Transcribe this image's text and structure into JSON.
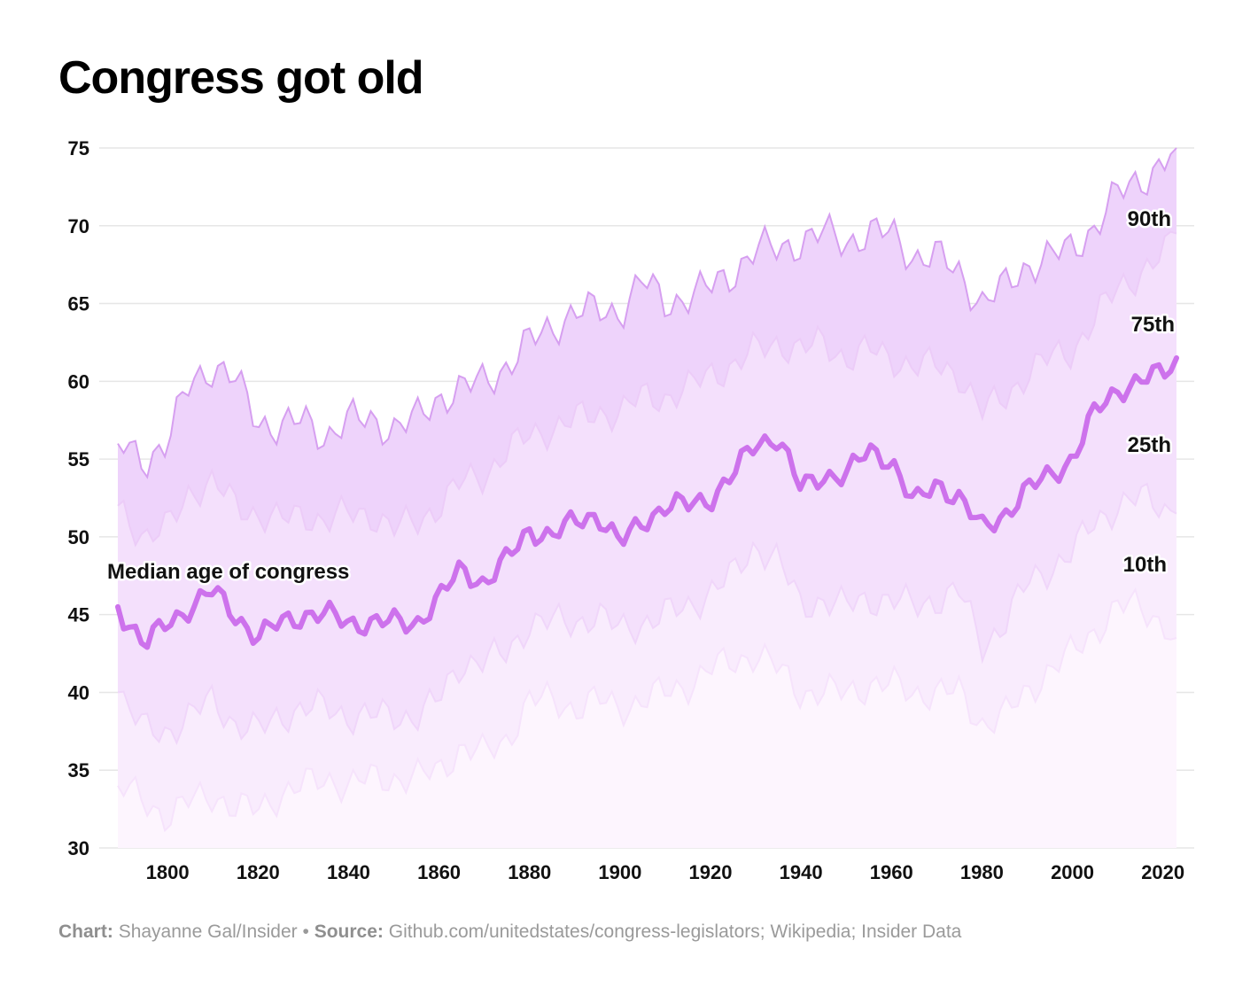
{
  "title": "Congress got old",
  "footer": {
    "chart_prefix": "Chart:",
    "chart_credit": "Shayanne Gal/Insider",
    "separator": "•",
    "source_prefix": "Source:",
    "source_text": "Github.com/unitedstates/congress-legislators; Wikipedia; Insider Data"
  },
  "colors": {
    "band_90": "#eed3fb",
    "band_75": "#f4e0fc",
    "band_25": "#f9ecfd",
    "band_10": "#fdf5fe",
    "line_90": "#d69ff0",
    "line_75": "#ecccf8",
    "line_25": "#f0d6fa",
    "line_10": "#f6e3fc",
    "median": "#cd72ec",
    "grid": "#e6e6e6"
  },
  "chart_data": {
    "type": "area",
    "title": "Congress got old",
    "xlabel": "",
    "ylabel": "",
    "xlim": [
      1789,
      2023
    ],
    "ylim": [
      30,
      75
    ],
    "x_ticks": [
      1800,
      1820,
      1840,
      1860,
      1880,
      1900,
      1920,
      1940,
      1960,
      1980,
      2000,
      2020
    ],
    "y_ticks": [
      30,
      35,
      40,
      45,
      50,
      55,
      60,
      65,
      70,
      75
    ],
    "grid": true,
    "annotations": [
      "Median age of congress",
      "90th",
      "75th",
      "25th",
      "10th"
    ],
    "x": [
      1789,
      1795,
      1800,
      1805,
      1810,
      1815,
      1820,
      1825,
      1830,
      1835,
      1840,
      1845,
      1850,
      1855,
      1860,
      1865,
      1870,
      1875,
      1880,
      1885,
      1890,
      1895,
      1900,
      1905,
      1910,
      1915,
      1920,
      1925,
      1930,
      1935,
      1940,
      1945,
      1950,
      1955,
      1960,
      1965,
      1970,
      1975,
      1980,
      1985,
      1990,
      1995,
      2000,
      2005,
      2010,
      2015,
      2020,
      2023
    ],
    "series": [
      {
        "name": "90th",
        "values": [
          56.0,
          55.0,
          56.0,
          60.0,
          61.0,
          60.0,
          57.5,
          57.0,
          57.5,
          56.5,
          57.5,
          57.5,
          57.0,
          57.5,
          59.0,
          59.5,
          60.0,
          61.0,
          62.5,
          63.5,
          64.5,
          64.5,
          64.5,
          66.5,
          65.0,
          65.5,
          66.0,
          67.0,
          68.5,
          68.5,
          69.0,
          69.5,
          69.0,
          69.5,
          69.5,
          68.0,
          68.0,
          67.0,
          65.0,
          66.0,
          67.5,
          68.0,
          68.5,
          70.0,
          72.0,
          73.0,
          74.0,
          75.0
        ]
      },
      {
        "name": "75th",
        "values": [
          52.0,
          50.0,
          50.5,
          53.0,
          53.5,
          52.0,
          51.5,
          51.0,
          51.5,
          51.0,
          51.5,
          51.5,
          50.5,
          51.0,
          52.0,
          53.5,
          54.0,
          55.5,
          56.5,
          57.0,
          57.5,
          58.0,
          58.0,
          59.0,
          59.0,
          59.5,
          60.5,
          61.0,
          62.0,
          62.5,
          62.0,
          62.5,
          61.5,
          62.0,
          61.5,
          61.0,
          61.0,
          60.5,
          58.0,
          59.0,
          60.5,
          61.5,
          62.0,
          64.0,
          66.0,
          67.0,
          68.0,
          69.5
        ]
      },
      {
        "name": "Median age of congress",
        "values": [
          45.5,
          43.0,
          44.5,
          45.5,
          46.5,
          45.0,
          43.5,
          44.5,
          45.0,
          45.0,
          44.5,
          44.5,
          44.5,
          44.5,
          46.0,
          48.0,
          47.0,
          48.5,
          50.5,
          50.0,
          51.0,
          51.5,
          49.5,
          51.0,
          52.0,
          52.0,
          52.5,
          54.0,
          56.0,
          56.5,
          53.0,
          54.0,
          54.0,
          55.5,
          55.0,
          52.0,
          53.5,
          52.5,
          50.5,
          51.5,
          53.0,
          54.0,
          55.0,
          58.0,
          59.5,
          60.0,
          60.5,
          61.5
        ]
      },
      {
        "name": "25th",
        "values": [
          40.0,
          37.5,
          37.5,
          38.5,
          39.5,
          38.0,
          37.5,
          38.5,
          39.0,
          39.0,
          38.5,
          38.5,
          38.5,
          38.5,
          39.5,
          42.0,
          42.0,
          42.5,
          44.5,
          44.5,
          44.5,
          45.0,
          44.0,
          44.5,
          45.0,
          45.5,
          46.5,
          47.5,
          49.5,
          48.5,
          45.5,
          46.0,
          45.5,
          46.0,
          46.0,
          45.5,
          46.0,
          46.5,
          43.0,
          44.5,
          47.0,
          48.0,
          49.0,
          51.0,
          52.0,
          52.5,
          52.0,
          51.5
        ]
      },
      {
        "name": "10th",
        "values": [
          34.0,
          33.0,
          32.0,
          33.0,
          33.5,
          32.5,
          32.5,
          33.5,
          34.0,
          34.5,
          34.0,
          34.5,
          34.5,
          34.5,
          35.0,
          36.5,
          36.0,
          37.0,
          39.5,
          39.5,
          39.0,
          39.5,
          39.0,
          39.5,
          40.0,
          40.5,
          41.5,
          42.0,
          42.5,
          41.5,
          40.0,
          40.0,
          40.0,
          40.5,
          40.5,
          40.0,
          40.0,
          40.0,
          38.0,
          38.5,
          40.0,
          41.5,
          42.5,
          44.0,
          45.5,
          45.5,
          44.5,
          43.5
        ]
      }
    ]
  }
}
